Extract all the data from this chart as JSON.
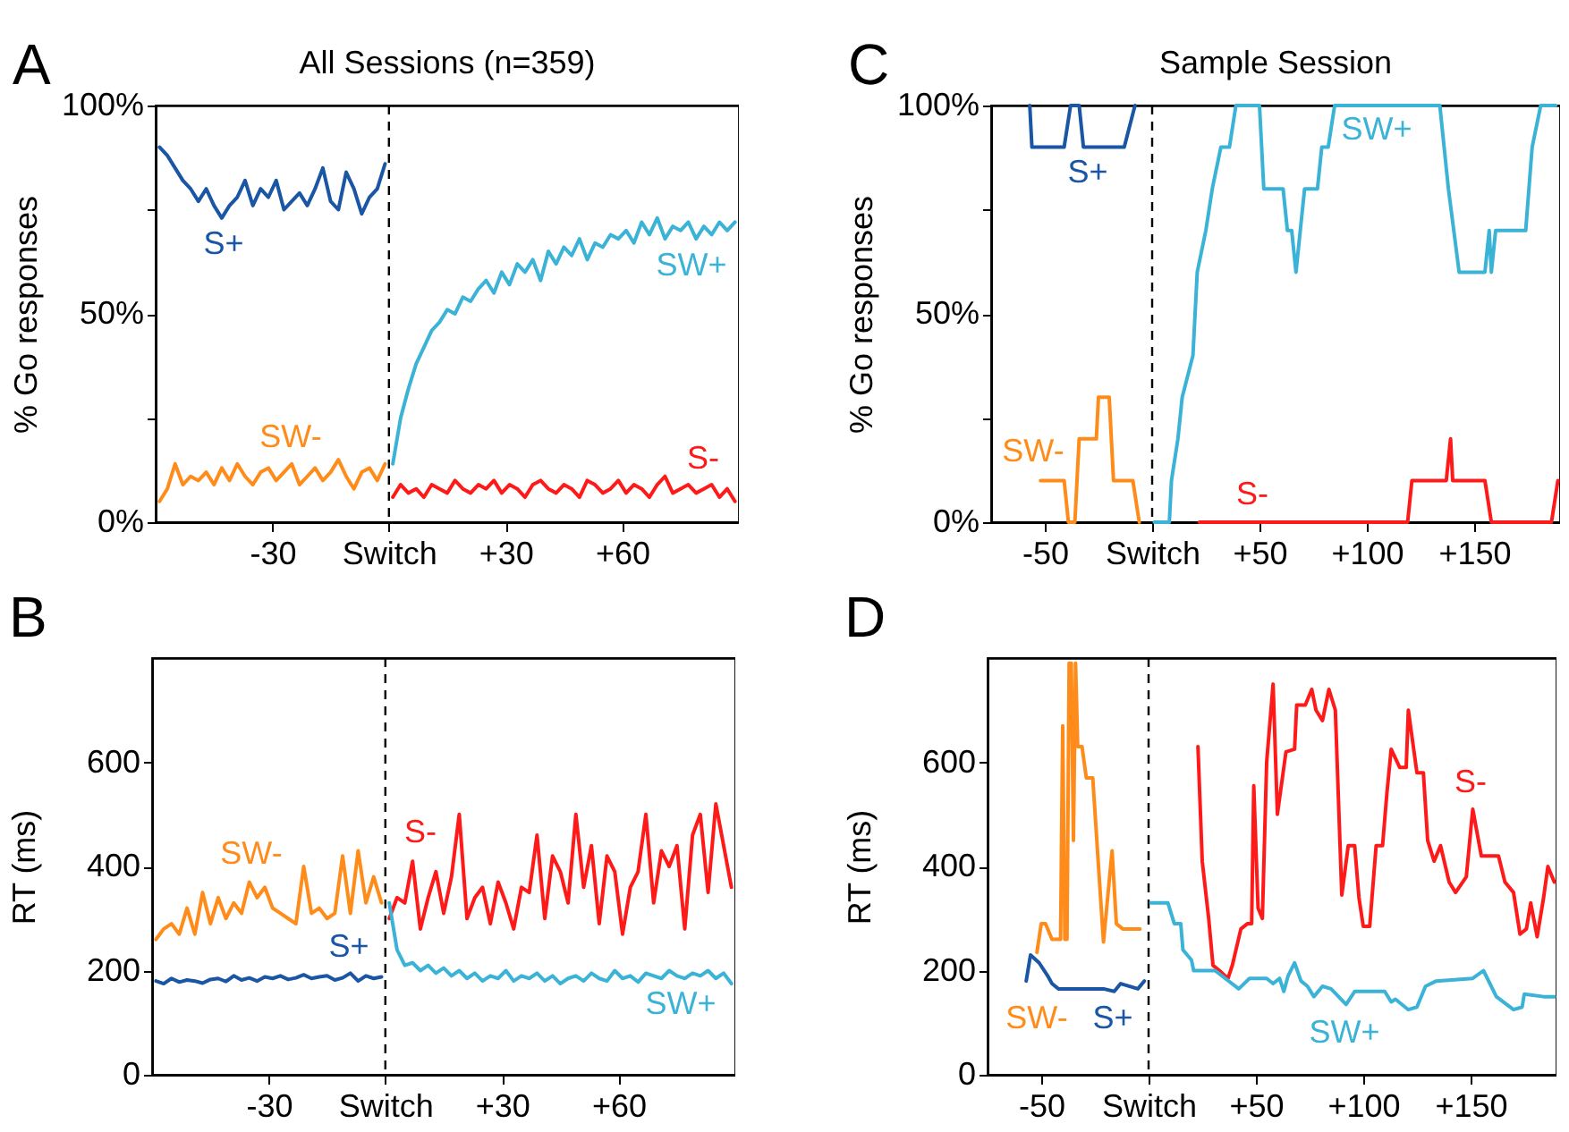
{
  "chart_data": [
    {
      "type": "line",
      "title": "All Sessions (n=359)",
      "ylabel": "% Go responses",
      "annotations": [
        "A"
      ],
      "xlim": [
        -60,
        90
      ],
      "xticks": [
        {
          "value": -30,
          "label": "-30"
        },
        {
          "value": 0,
          "label": "Switch"
        },
        {
          "value": 30,
          "label": "+30"
        },
        {
          "value": 60,
          "label": "+60"
        }
      ],
      "ylim": [
        0,
        100
      ],
      "yticks": [
        {
          "value": 0,
          "label": "0%"
        },
        {
          "value": 25,
          "label": null
        },
        {
          "value": 50,
          "label": "50%"
        },
        {
          "value": 75,
          "label": null
        },
        {
          "value": 100,
          "label": "100%"
        }
      ],
      "ref_lines": [
        {
          "axis": "x",
          "value": 0,
          "color": "#000000",
          "line_style": "dashed"
        }
      ],
      "series": [
        {
          "name": "S+",
          "color": "#1a56a4",
          "x": [
            -59,
            -57,
            -55,
            -53,
            -51,
            -49,
            -47,
            -45,
            -43,
            -41,
            -39,
            -37,
            -35,
            -33,
            -31,
            -29,
            -27,
            -25,
            -23,
            -21,
            -19,
            -17,
            -15,
            -13,
            -11,
            -9,
            -7,
            -5,
            -3,
            -1
          ],
          "values": [
            90,
            88,
            85,
            82,
            80,
            77,
            80,
            76,
            73,
            76,
            78,
            82,
            76,
            80,
            78,
            82,
            75,
            77,
            79,
            76,
            80,
            85,
            77,
            75,
            84,
            80,
            74,
            78,
            80,
            86
          ]
        },
        {
          "name": "SW-",
          "color": "#ff8c1a",
          "x": [
            -59,
            -57,
            -55,
            -53,
            -51,
            -49,
            -47,
            -45,
            -43,
            -41,
            -39,
            -37,
            -35,
            -33,
            -31,
            -29,
            -27,
            -25,
            -23,
            -21,
            -19,
            -17,
            -15,
            -13,
            -11,
            -9,
            -7,
            -5,
            -3,
            -1
          ],
          "values": [
            5,
            8,
            14,
            9,
            11,
            10,
            12,
            9,
            13,
            10,
            14,
            11,
            9,
            12,
            13,
            10,
            12,
            14,
            9,
            11,
            13,
            10,
            12,
            15,
            11,
            8,
            12,
            13,
            10,
            14
          ]
        },
        {
          "name": "SW+",
          "color": "#3bb3d6",
          "x": [
            1,
            3,
            5,
            7,
            9,
            11,
            13,
            15,
            17,
            19,
            21,
            23,
            25,
            27,
            29,
            31,
            33,
            35,
            37,
            39,
            41,
            43,
            45,
            47,
            49,
            51,
            53,
            55,
            57,
            59,
            61,
            63,
            65,
            67,
            69,
            71,
            73,
            75,
            77,
            79,
            81,
            83,
            85,
            87,
            89
          ],
          "values": [
            14,
            25,
            32,
            38,
            42,
            46,
            48,
            51,
            50,
            54,
            53,
            56,
            58,
            55,
            60,
            57,
            62,
            60,
            63,
            58,
            65,
            62,
            66,
            64,
            68,
            63,
            67,
            66,
            69,
            68,
            70,
            67,
            72,
            69,
            73,
            68,
            71,
            70,
            72,
            68,
            71,
            69,
            72,
            70,
            72
          ]
        },
        {
          "name": "S-",
          "color": "#ff1a1a",
          "x": [
            1,
            3,
            5,
            7,
            9,
            11,
            13,
            15,
            17,
            19,
            21,
            23,
            25,
            27,
            29,
            31,
            33,
            35,
            37,
            39,
            41,
            43,
            45,
            47,
            49,
            51,
            53,
            55,
            57,
            59,
            61,
            63,
            65,
            67,
            69,
            71,
            73,
            75,
            77,
            79,
            81,
            83,
            85,
            87,
            89
          ],
          "values": [
            6,
            9,
            7,
            8,
            6,
            9,
            8,
            7,
            10,
            8,
            7,
            9,
            8,
            10,
            7,
            9,
            8,
            6,
            9,
            10,
            8,
            7,
            9,
            8,
            6,
            10,
            9,
            7,
            8,
            10,
            7,
            9,
            8,
            6,
            9,
            11,
            7,
            8,
            9,
            7,
            8,
            9,
            6,
            8,
            5
          ]
        }
      ]
    },
    {
      "type": "line",
      "title": "Sample Session",
      "ylabel": "% Go responses",
      "annotations": [
        "C"
      ],
      "xlim": [
        -75,
        190
      ],
      "xticks": [
        {
          "value": -50,
          "label": "-50"
        },
        {
          "value": 0,
          "label": "Switch"
        },
        {
          "value": 50,
          "label": "+50"
        },
        {
          "value": 100,
          "label": "+100"
        },
        {
          "value": 150,
          "label": "+150"
        }
      ],
      "ylim": [
        0,
        100
      ],
      "yticks": [
        {
          "value": 0,
          "label": "0%"
        },
        {
          "value": 25,
          "label": null
        },
        {
          "value": 50,
          "label": "50%"
        },
        {
          "value": 75,
          "label": null
        },
        {
          "value": 100,
          "label": "100%"
        }
      ],
      "ref_lines": [
        {
          "axis": "x",
          "value": 0,
          "color": "#000000",
          "line_style": "dashed"
        }
      ],
      "series": [
        {
          "name": "S+",
          "color": "#1a56a4",
          "x": [
            -57,
            -56,
            -41,
            -38,
            -34,
            -32,
            -13,
            -8
          ],
          "values": [
            100,
            90,
            90,
            100,
            100,
            90,
            90,
            100
          ]
        },
        {
          "name": "SW-",
          "color": "#ff8c1a",
          "x": [
            -52,
            -41,
            -39,
            -36,
            -34,
            -26,
            -25,
            -20,
            -18,
            -9,
            -6
          ],
          "values": [
            10,
            10,
            0,
            0,
            20,
            20,
            30,
            30,
            10,
            10,
            0
          ]
        },
        {
          "name": "SW+",
          "color": "#3bb3d6",
          "x": [
            1,
            8,
            9,
            12,
            14,
            19,
            21,
            25,
            28,
            32,
            36,
            39,
            50,
            52,
            61,
            63,
            65,
            67,
            71,
            77,
            79,
            82,
            85,
            134,
            136,
            138,
            143,
            155,
            157,
            158,
            160,
            174,
            177,
            181,
            188
          ],
          "values": [
            0,
            0,
            10,
            20,
            30,
            40,
            60,
            70,
            80,
            90,
            90,
            100,
            100,
            80,
            80,
            70,
            70,
            60,
            80,
            80,
            90,
            90,
            100,
            100,
            90,
            80,
            60,
            60,
            70,
            60,
            70,
            70,
            90,
            100,
            100
          ]
        },
        {
          "name": "S-",
          "color": "#ff1a1a",
          "x": [
            22,
            119,
            121,
            137,
            139,
            140,
            155,
            158,
            186,
            189
          ],
          "values": [
            0,
            0,
            10,
            10,
            20,
            10,
            10,
            0,
            0,
            10
          ]
        }
      ]
    },
    {
      "type": "line",
      "ylabel": "RT (ms)",
      "annotations": [
        "B"
      ],
      "xlim": [
        -60,
        90
      ],
      "xticks": [
        {
          "value": -30,
          "label": "-30"
        },
        {
          "value": 0,
          "label": "Switch"
        },
        {
          "value": 30,
          "label": "+30"
        },
        {
          "value": 60,
          "label": "+60"
        }
      ],
      "ylim": [
        0,
        800
      ],
      "yticks": [
        0,
        200,
        400,
        600
      ],
      "ref_lines": [
        {
          "axis": "x",
          "value": 0,
          "color": "#000000",
          "line_style": "dashed"
        }
      ],
      "series": [
        {
          "name": "SW-",
          "color": "#ff8c1a",
          "x": [
            -59,
            -57,
            -55,
            -53,
            -51,
            -49,
            -47,
            -45,
            -43,
            -41,
            -39,
            -37,
            -35,
            -33,
            -31,
            -29,
            -27,
            -25,
            -23,
            -21,
            -19,
            -17,
            -15,
            -13,
            -11,
            -9,
            -7,
            -5,
            -3,
            -1
          ],
          "values": [
            260,
            280,
            290,
            270,
            320,
            270,
            350,
            290,
            340,
            300,
            330,
            310,
            370,
            340,
            360,
            320,
            310,
            300,
            290,
            400,
            310,
            320,
            300,
            310,
            420,
            310,
            430,
            330,
            380,
            330
          ]
        },
        {
          "name": "S+",
          "color": "#1a56a4",
          "x": [
            -59,
            -57,
            -55,
            -53,
            -51,
            -49,
            -47,
            -45,
            -43,
            -41,
            -39,
            -37,
            -35,
            -33,
            -31,
            -29,
            -27,
            -25,
            -23,
            -21,
            -19,
            -17,
            -15,
            -13,
            -11,
            -9,
            -7,
            -5,
            -3,
            -1
          ],
          "values": [
            180,
            175,
            185,
            178,
            182,
            180,
            176,
            183,
            185,
            179,
            190,
            182,
            186,
            180,
            188,
            185,
            190,
            183,
            186,
            192,
            185,
            188,
            190,
            182,
            186,
            195,
            180,
            190,
            185,
            188
          ]
        },
        {
          "name": "S-",
          "color": "#ff1a1a",
          "x": [
            1,
            3,
            5,
            7,
            9,
            11,
            13,
            15,
            17,
            19,
            21,
            23,
            25,
            27,
            29,
            31,
            33,
            35,
            37,
            39,
            41,
            43,
            45,
            47,
            49,
            51,
            53,
            55,
            57,
            59,
            61,
            63,
            65,
            67,
            69,
            71,
            73,
            75,
            77,
            79,
            81,
            83,
            85,
            87,
            89
          ],
          "values": [
            300,
            340,
            330,
            410,
            280,
            340,
            390,
            310,
            380,
            500,
            300,
            340,
            360,
            290,
            370,
            330,
            280,
            360,
            350,
            460,
            300,
            420,
            390,
            330,
            500,
            360,
            440,
            290,
            420,
            390,
            270,
            360,
            390,
            500,
            330,
            430,
            400,
            440,
            280,
            460,
            500,
            350,
            520,
            440,
            360
          ]
        },
        {
          "name": "SW+",
          "color": "#3bb3d6",
          "x": [
            1,
            3,
            5,
            7,
            9,
            11,
            13,
            15,
            17,
            19,
            21,
            23,
            25,
            27,
            29,
            31,
            33,
            35,
            37,
            39,
            41,
            43,
            45,
            47,
            49,
            51,
            53,
            55,
            57,
            59,
            61,
            63,
            65,
            67,
            69,
            71,
            73,
            75,
            77,
            79,
            81,
            83,
            85,
            87,
            89
          ],
          "values": [
            330,
            240,
            210,
            215,
            200,
            210,
            195,
            205,
            190,
            200,
            185,
            195,
            180,
            190,
            185,
            200,
            180,
            190,
            185,
            195,
            180,
            190,
            175,
            185,
            190,
            180,
            195,
            185,
            180,
            200,
            185,
            190,
            178,
            195,
            190,
            185,
            200,
            190,
            185,
            195,
            190,
            200,
            185,
            195,
            175
          ]
        }
      ]
    },
    {
      "type": "line",
      "ylabel": "RT (ms)",
      "annotations": [
        "D"
      ],
      "xlim": [
        -75,
        190
      ],
      "xticks": [
        {
          "value": -50,
          "label": "-50"
        },
        {
          "value": 0,
          "label": "Switch"
        },
        {
          "value": 50,
          "label": "+50"
        },
        {
          "value": 100,
          "label": "+100"
        },
        {
          "value": 150,
          "label": "+150"
        }
      ],
      "ylim": [
        0,
        800
      ],
      "yticks": [
        0,
        200,
        400,
        600
      ],
      "ref_lines": [
        {
          "axis": "x",
          "value": 0,
          "color": "#000000",
          "line_style": "dashed"
        }
      ],
      "series": [
        {
          "name": "SW-",
          "color": "#ff8c1a",
          "x": [
            -52,
            -50,
            -48,
            -45,
            -41,
            -40,
            -39,
            -38,
            -37,
            -36,
            -35,
            -34,
            -33,
            -31,
            -29,
            -26,
            -23,
            -21,
            -17,
            -15,
            -12,
            -4
          ],
          "values": [
            235,
            290,
            290,
            260,
            260,
            670,
            260,
            260,
            790,
            790,
            450,
            790,
            630,
            630,
            570,
            570,
            380,
            255,
            430,
            290,
            280,
            280
          ]
        },
        {
          "name": "S+",
          "color": "#1a56a4",
          "x": [
            -57,
            -55,
            -51,
            -47,
            -45,
            -42,
            -21,
            -16,
            -13,
            -5,
            -2
          ],
          "values": [
            180,
            230,
            215,
            190,
            175,
            165,
            165,
            160,
            175,
            165,
            180
          ]
        },
        {
          "name": "S-",
          "color": "#ff1a1a",
          "x": [
            23,
            25,
            28,
            30,
            33,
            37,
            39,
            43,
            46,
            48,
            49,
            51,
            53,
            55,
            58,
            60,
            64,
            68,
            69,
            73,
            76,
            78,
            81,
            84,
            87,
            90,
            93,
            96,
            98,
            100,
            103,
            106,
            109,
            111,
            113,
            117,
            120,
            121,
            125,
            128,
            130,
            133,
            136,
            140,
            143,
            148,
            151,
            155,
            163,
            166,
            170,
            173,
            176,
            178,
            181,
            184,
            186,
            189
          ],
          "values": [
            630,
            410,
            300,
            210,
            200,
            185,
            210,
            280,
            290,
            290,
            555,
            320,
            300,
            600,
            750,
            500,
            620,
            625,
            710,
            710,
            740,
            700,
            680,
            740,
            700,
            345,
            440,
            440,
            340,
            285,
            285,
            440,
            440,
            540,
            625,
            590,
            590,
            700,
            580,
            580,
            450,
            410,
            440,
            370,
            350,
            380,
            510,
            420,
            420,
            370,
            350,
            270,
            280,
            330,
            265,
            340,
            400,
            370
          ]
        },
        {
          "name": "SW+",
          "color": "#3bb3d6",
          "x": [
            1,
            9,
            12,
            15,
            16,
            20,
            21,
            31,
            42,
            47,
            55,
            58,
            61,
            63,
            65,
            68,
            71,
            74,
            77,
            81,
            85,
            92,
            96,
            110,
            113,
            115,
            121,
            125,
            129,
            134,
            151,
            156,
            162,
            170,
            174,
            175,
            184,
            189
          ],
          "values": [
            330,
            330,
            290,
            290,
            240,
            220,
            200,
            200,
            165,
            185,
            185,
            175,
            185,
            160,
            190,
            215,
            180,
            170,
            150,
            170,
            165,
            135,
            160,
            160,
            140,
            145,
            125,
            130,
            170,
            180,
            185,
            200,
            150,
            125,
            130,
            155,
            150,
            150
          ]
        }
      ]
    }
  ]
}
